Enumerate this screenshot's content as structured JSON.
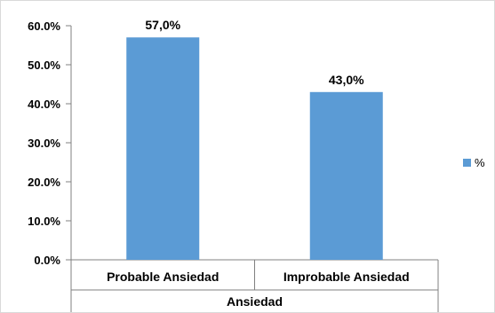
{
  "chart_data": {
    "type": "bar",
    "categories": [
      "Probable Ansiedad",
      "Improbable Ansiedad"
    ],
    "series": [
      {
        "name": "%",
        "values": [
          57.0,
          43.0
        ],
        "color": "#5B9BD5"
      }
    ],
    "data_labels": [
      "57,0%",
      "43,0%"
    ],
    "yticks": [
      "0.0%",
      "10.0%",
      "20.0%",
      "30.0%",
      "40.0%",
      "50.0%",
      "60.0%"
    ],
    "ylim": [
      0,
      60
    ],
    "xlabel": "Ansiedad",
    "ylabel": "",
    "title": "",
    "grid": false,
    "legend_position": "right"
  }
}
